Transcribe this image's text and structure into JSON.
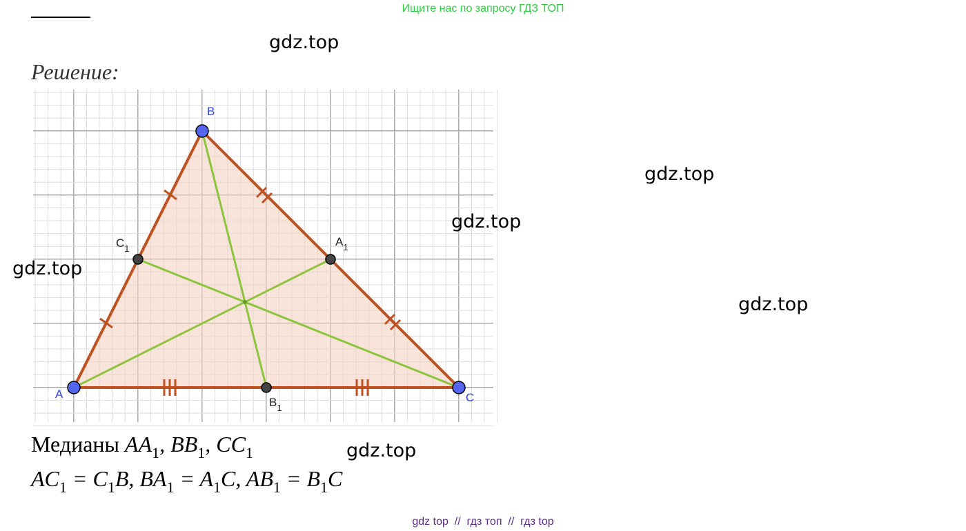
{
  "header": {
    "notice": "Ищите нас по запросу ГДЗ ТОП"
  },
  "watermarks": [
    "gdz.top",
    "gdz.top",
    "gdz.top",
    "gdz.top",
    "gdz.top",
    "gdz.top"
  ],
  "solution": {
    "heading": "Решение:",
    "figure": {
      "points": [
        {
          "name": "A"
        },
        {
          "name": "B"
        },
        {
          "name": "C"
        },
        {
          "name": "A",
          "sub": "1"
        },
        {
          "name": "B",
          "sub": "1"
        },
        {
          "name": "C",
          "sub": "1"
        }
      ]
    },
    "medians": [
      {
        "text": "Медианы "
      },
      {
        "math": "AA"
      },
      {
        "sub": "1"
      },
      {
        "math": ", BB"
      },
      {
        "sub": "1"
      },
      {
        "math": ", CC"
      },
      {
        "sub": "1"
      }
    ],
    "equalities": [
      {
        "math": "AC"
      },
      {
        "sub": "1"
      },
      {
        "math": " = C"
      },
      {
        "sub": "1"
      },
      {
        "math": "B, BA"
      },
      {
        "sub": "1"
      },
      {
        "math": " = A"
      },
      {
        "sub": "1"
      },
      {
        "math": "C, AB"
      },
      {
        "sub": "1"
      },
      {
        "math": " = B"
      },
      {
        "sub": "1"
      },
      {
        "math": "C"
      }
    ]
  },
  "footer": "gdz top  //  гдз топ  //  гдз top"
}
